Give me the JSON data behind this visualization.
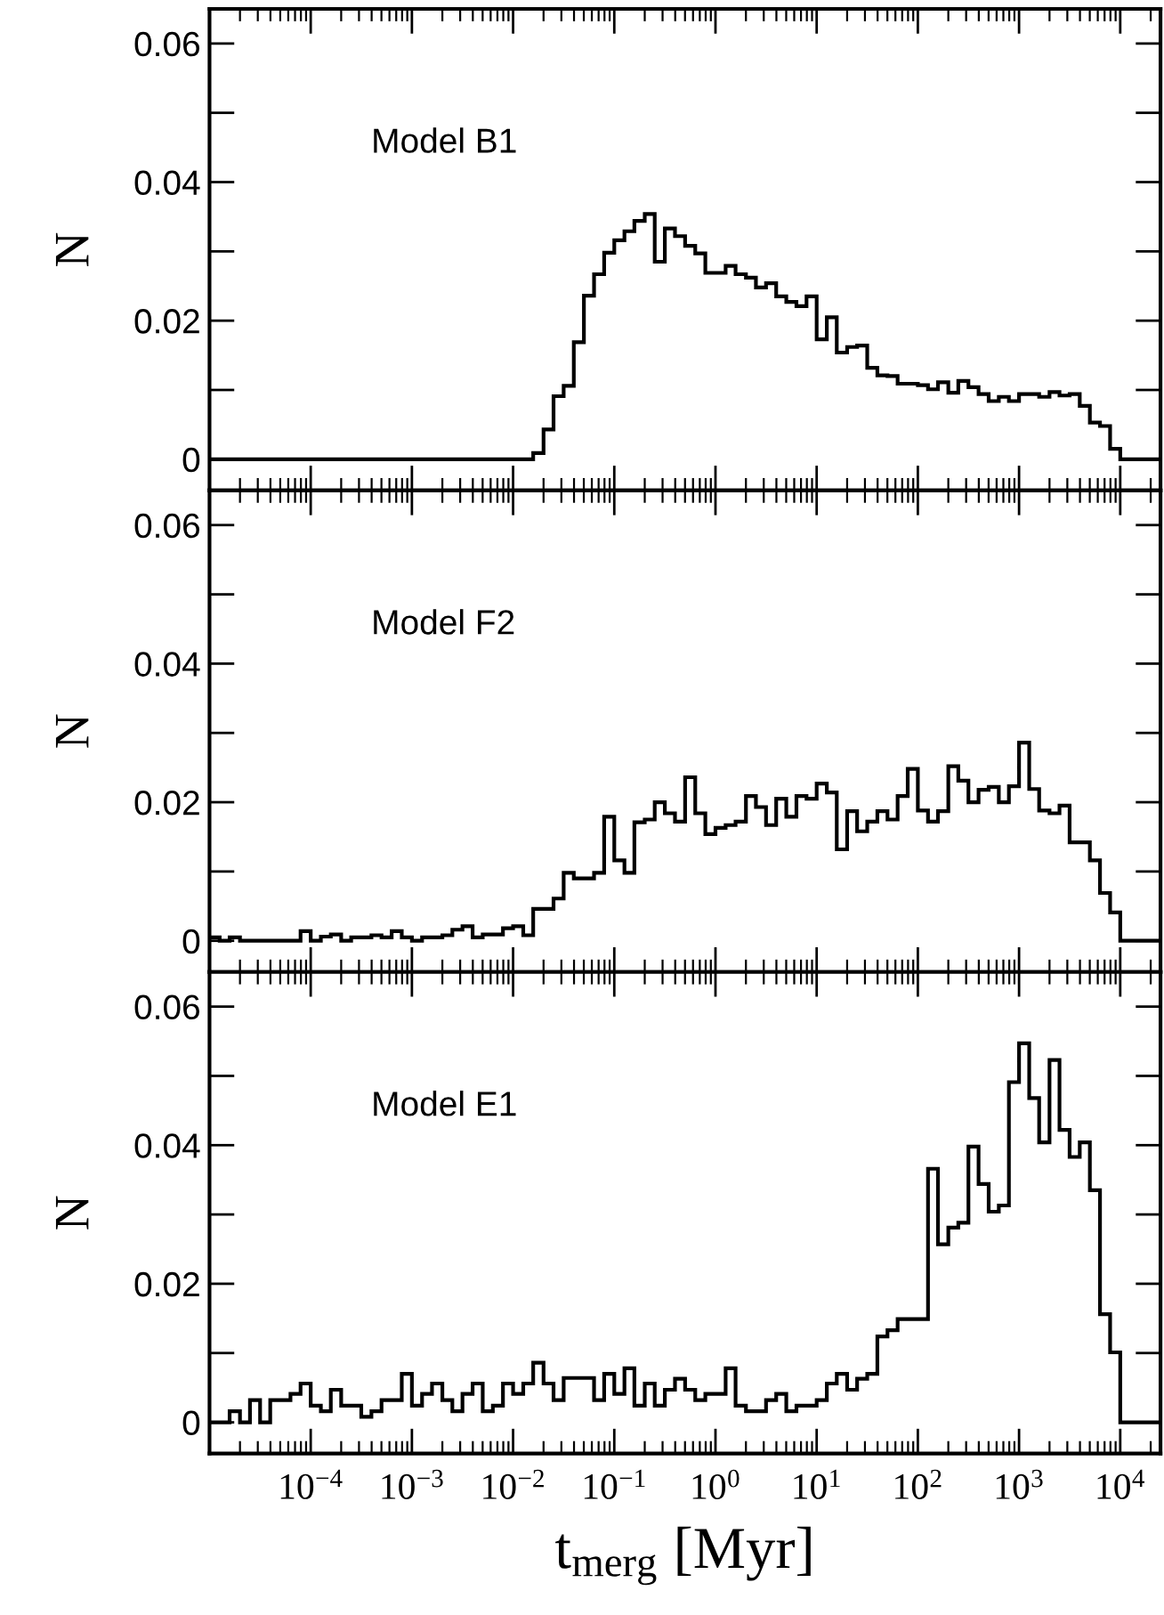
{
  "chart_data": [
    {
      "type": "histogram",
      "annotations": [
        "Model B1"
      ],
      "ylabel": "N",
      "log": "x",
      "tick_labels": "y",
      "color": "#000000",
      "bins": [
        1e-05,
        1.26e-05,
        1.58e-05,
        2e-05,
        2.51e-05,
        3.16e-05,
        3.98e-05,
        5.01e-05,
        6.31e-05,
        7.94e-05,
        0.0001,
        0.000126,
        0.000158,
        0.0002,
        0.000251,
        0.000316,
        0.000398,
        0.000501,
        0.000631,
        0.000794,
        0.001,
        0.00126,
        0.00158,
        0.002,
        0.00251,
        0.00316,
        0.00398,
        0.00501,
        0.00631,
        0.00794,
        0.01,
        0.0126,
        0.0158,
        0.02,
        0.0251,
        0.0316,
        0.0398,
        0.0501,
        0.0631,
        0.0794,
        0.1,
        0.126,
        0.158,
        0.2,
        0.251,
        0.316,
        0.398,
        0.501,
        0.631,
        0.794,
        1,
        1.26,
        1.58,
        2,
        2.51,
        3.16,
        3.98,
        5.01,
        6.31,
        7.94,
        10,
        12.6,
        15.8,
        20,
        25.1,
        31.6,
        39.8,
        50.1,
        63.1,
        79.4,
        100,
        126,
        158,
        200,
        251,
        316,
        398,
        501,
        631,
        794,
        1000,
        1260,
        1580,
        2000,
        2510,
        3160,
        3980,
        5010,
        6310,
        7940,
        10000,
        25000
      ],
      "values": [
        0,
        0,
        0,
        0,
        0,
        0,
        0,
        0,
        0,
        0,
        0,
        0,
        0,
        0,
        0,
        0,
        0,
        0,
        0,
        0,
        0,
        0,
        0,
        0,
        0,
        0,
        0,
        0,
        0,
        0,
        0,
        0,
        0.0009,
        0.0043,
        0.0091,
        0.0106,
        0.0169,
        0.0236,
        0.0267,
        0.0298,
        0.0316,
        0.0329,
        0.0344,
        0.0354,
        0.0285,
        0.0333,
        0.0322,
        0.0308,
        0.0297,
        0.0269,
        0.0269,
        0.0279,
        0.0267,
        0.0262,
        0.0248,
        0.0254,
        0.0235,
        0.0227,
        0.0221,
        0.0235,
        0.0173,
        0.0205,
        0.0154,
        0.0162,
        0.0164,
        0.0132,
        0.0121,
        0.012,
        0.0109,
        0.0109,
        0.0107,
        0.0101,
        0.0111,
        0.0096,
        0.0113,
        0.0104,
        0.0094,
        0.0084,
        0.009,
        0.0084,
        0.0094,
        0.0094,
        0.009,
        0.0097,
        0.0092,
        0.0094,
        0.0077,
        0.0053,
        0.0048,
        0.0015,
        0
      ],
      "xlim": [
        1e-05,
        25000
      ],
      "ylim": [
        -0.0045,
        0.065
      ],
      "xticks": [
        {
          "value": 0.0001,
          "label": null
        },
        {
          "value": 0.001,
          "label": null
        },
        {
          "value": 0.01,
          "label": null
        },
        {
          "value": 0.1,
          "label": null
        },
        {
          "value": 1,
          "label": null
        },
        {
          "value": 10,
          "label": null
        },
        {
          "value": 100,
          "label": null
        },
        {
          "value": 1000,
          "label": null
        },
        {
          "value": 10000,
          "label": null
        }
      ],
      "yticks": [
        0,
        {
          "value": 0.01,
          "label": null
        },
        0.02,
        {
          "value": 0.03,
          "label": null
        },
        0.04,
        {
          "value": 0.05,
          "label": null
        },
        0.06
      ]
    },
    {
      "type": "histogram",
      "annotations": [
        "Model F2"
      ],
      "ylabel": "N",
      "log": "x",
      "tick_labels": "y",
      "color": "#000000",
      "bins": [
        1e-05,
        1.26e-05,
        1.58e-05,
        2e-05,
        2.51e-05,
        3.16e-05,
        3.98e-05,
        5.01e-05,
        6.31e-05,
        7.94e-05,
        0.0001,
        0.000126,
        0.000158,
        0.0002,
        0.000251,
        0.000316,
        0.000398,
        0.000501,
        0.000631,
        0.000794,
        0.001,
        0.00126,
        0.00158,
        0.002,
        0.00251,
        0.00316,
        0.00398,
        0.00501,
        0.00631,
        0.00794,
        0.01,
        0.0126,
        0.0158,
        0.02,
        0.0251,
        0.0316,
        0.0398,
        0.0501,
        0.0631,
        0.0794,
        0.1,
        0.126,
        0.158,
        0.2,
        0.251,
        0.316,
        0.398,
        0.501,
        0.631,
        0.794,
        1,
        1.26,
        1.58,
        2,
        2.51,
        3.16,
        3.98,
        5.01,
        6.31,
        7.94,
        10,
        12.6,
        15.8,
        20,
        25.1,
        31.6,
        39.8,
        50.1,
        63.1,
        79.4,
        100,
        126,
        158,
        200,
        251,
        316,
        398,
        501,
        631,
        794,
        1000,
        1260,
        1580,
        2000,
        2510,
        3160,
        3980,
        5010,
        6310,
        7940,
        10000,
        25000
      ],
      "values": [
        0.0005,
        0,
        0.0005,
        0,
        0,
        0,
        0,
        0,
        0,
        0.0014,
        0,
        0.0006,
        0.0009,
        0,
        0.0005,
        0.0005,
        0.0008,
        0.0005,
        0.0014,
        0.0005,
        0,
        0.0005,
        0.0005,
        0.0008,
        0.0016,
        0.0021,
        0.0005,
        0.0009,
        0.0009,
        0.0018,
        0.0021,
        0.0008,
        0.0046,
        0.0046,
        0.0061,
        0.0098,
        0.009,
        0.009,
        0.0098,
        0.0179,
        0.0116,
        0.0098,
        0.0171,
        0.0175,
        0.02,
        0.0184,
        0.0172,
        0.0236,
        0.0184,
        0.0154,
        0.0163,
        0.0167,
        0.0172,
        0.0209,
        0.0193,
        0.0167,
        0.0205,
        0.0179,
        0.0209,
        0.0205,
        0.0227,
        0.0214,
        0.0132,
        0.0187,
        0.0158,
        0.0172,
        0.0187,
        0.0175,
        0.0209,
        0.0248,
        0.0188,
        0.0172,
        0.0187,
        0.0252,
        0.0231,
        0.02,
        0.0218,
        0.0222,
        0.02,
        0.0223,
        0.0286,
        0.0219,
        0.0188,
        0.0184,
        0.0195,
        0.0142,
        0.0142,
        0.0116,
        0.0069,
        0.0041,
        0
      ],
      "xlim": [
        1e-05,
        25000
      ],
      "ylim": [
        -0.0045,
        0.065
      ],
      "xticks": [
        {
          "value": 0.0001,
          "label": null
        },
        {
          "value": 0.001,
          "label": null
        },
        {
          "value": 0.01,
          "label": null
        },
        {
          "value": 0.1,
          "label": null
        },
        {
          "value": 1,
          "label": null
        },
        {
          "value": 10,
          "label": null
        },
        {
          "value": 100,
          "label": null
        },
        {
          "value": 1000,
          "label": null
        },
        {
          "value": 10000,
          "label": null
        }
      ],
      "yticks": [
        0,
        {
          "value": 0.01,
          "label": null
        },
        0.02,
        {
          "value": 0.03,
          "label": null
        },
        0.04,
        {
          "value": 0.05,
          "label": null
        },
        0.06
      ]
    },
    {
      "type": "histogram",
      "annotations": [
        "Model E1"
      ],
      "ylabel": "N",
      "xlabel": "t$_{merg}$ [Myr]",
      "log": "x",
      "color": "#000000",
      "bins": [
        1e-05,
        1.26e-05,
        1.58e-05,
        2e-05,
        2.51e-05,
        3.16e-05,
        3.98e-05,
        5.01e-05,
        6.31e-05,
        7.94e-05,
        0.0001,
        0.000126,
        0.000158,
        0.0002,
        0.000251,
        0.000316,
        0.000398,
        0.000501,
        0.000631,
        0.000794,
        0.001,
        0.00126,
        0.00158,
        0.002,
        0.00251,
        0.00316,
        0.00398,
        0.00501,
        0.00631,
        0.00794,
        0.01,
        0.0126,
        0.0158,
        0.02,
        0.0251,
        0.0316,
        0.0398,
        0.0501,
        0.0631,
        0.0794,
        0.1,
        0.126,
        0.158,
        0.2,
        0.251,
        0.316,
        0.398,
        0.501,
        0.631,
        0.794,
        1,
        1.26,
        1.58,
        2,
        2.51,
        3.16,
        3.98,
        5.01,
        6.31,
        7.94,
        10,
        12.6,
        15.8,
        20,
        25.1,
        31.6,
        39.8,
        50.1,
        63.1,
        79.4,
        100,
        126,
        158,
        200,
        251,
        316,
        398,
        501,
        631,
        794,
        1000,
        1260,
        1580,
        2000,
        2510,
        3160,
        3980,
        5010,
        6310,
        7940,
        10000,
        25000
      ],
      "values": [
        0,
        0,
        0.0016,
        0,
        0.0032,
        0,
        0.0032,
        0.0032,
        0.0041,
        0.0056,
        0.0024,
        0.0016,
        0.0047,
        0.0024,
        0.0024,
        0.0008,
        0.0016,
        0.0032,
        0.0032,
        0.007,
        0.0024,
        0.0041,
        0.0056,
        0.0032,
        0.0016,
        0.0041,
        0.0056,
        0.0016,
        0.0024,
        0.0056,
        0.0041,
        0.0056,
        0.0086,
        0.0056,
        0.0032,
        0.0064,
        0.0064,
        0.0064,
        0.0032,
        0.007,
        0.0041,
        0.0078,
        0.0024,
        0.0056,
        0.0024,
        0.0047,
        0.0063,
        0.0047,
        0.0032,
        0.0041,
        0.0041,
        0.0078,
        0.0024,
        0.0016,
        0.0016,
        0.0032,
        0.0041,
        0.0016,
        0.0024,
        0.0024,
        0.0032,
        0.0056,
        0.007,
        0.0047,
        0.0063,
        0.007,
        0.0124,
        0.0133,
        0.0149,
        0.0149,
        0.0149,
        0.0366,
        0.0257,
        0.0281,
        0.0288,
        0.0398,
        0.0344,
        0.0304,
        0.0313,
        0.0491,
        0.0547,
        0.0468,
        0.0404,
        0.0523,
        0.0422,
        0.0383,
        0.0404,
        0.0335,
        0.0156,
        0.0101,
        0
      ],
      "xlim": [
        1e-05,
        25000
      ],
      "ylim": [
        -0.0045,
        0.065
      ],
      "xticks": [
        {
          "value": 0.0001,
          "label": "10$^{−4}$"
        },
        {
          "value": 0.001,
          "label": "10$^{−3}$"
        },
        {
          "value": 0.01,
          "label": "10$^{−2}$"
        },
        {
          "value": 0.1,
          "label": "10$^{−1}$"
        },
        {
          "value": 1,
          "label": "10$^{0}$"
        },
        {
          "value": 10,
          "label": "10$^{1}$"
        },
        {
          "value": 100,
          "label": "10$^{2}$"
        },
        {
          "value": 1000,
          "label": "10$^{3}$"
        },
        {
          "value": 10000,
          "label": "10$^{4}$"
        }
      ],
      "yticks": [
        0,
        {
          "value": 0.01,
          "label": null
        },
        0.02,
        {
          "value": 0.03,
          "label": null
        },
        0.04,
        {
          "value": 0.05,
          "label": null
        },
        0.06
      ]
    }
  ]
}
